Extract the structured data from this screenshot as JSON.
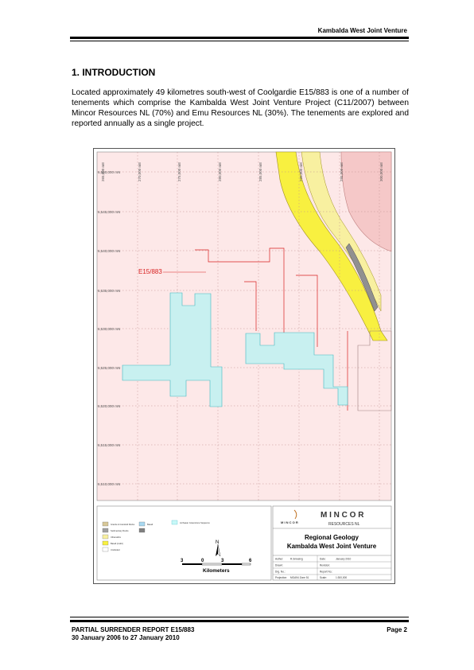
{
  "header": {
    "title": "Kambalda West Joint Venture"
  },
  "section": {
    "heading": "1.  INTRODUCTION",
    "paragraph": "Located approximately 49 kilometres south-west of Coolgardie E15/883 is one of a number of tenements which comprise the Kambalda West Joint Venture Project (C11/2007) between Mincor Resources NL (70%) and Emu Resources NL (30%). The tenements are explored and reported annually as a single project."
  },
  "map": {
    "eastings": [
      "265,000 mE",
      "270,000 mE",
      "275,000 mE",
      "280,000 mE",
      "285,000 mE",
      "290,000 mE",
      "295,000 mE",
      "300,000 mE"
    ],
    "northings": [
      "6,550,000 mN",
      "6,545,000 mN",
      "6,540,000 mN",
      "6,535,000 mN",
      "6,530,000 mN",
      "6,525,000 mN",
      "6,520,000 mN",
      "6,515,000 mN",
      "6,510,000 mN"
    ],
    "tenement_label": "E15/883",
    "legend": [
      {
        "label": "Granite & Granitoid Rocks",
        "color": "#d8c898"
      },
      {
        "label": "Basalt",
        "color": "#a8d8f0"
      },
      {
        "label": "Archaean Greenstone Sequence",
        "color": "#c8f8f8"
      },
      {
        "label": "Sedimentary Rocks",
        "color": "#a0a0a0"
      },
      {
        "label": "Ultramafics",
        "color": "#f8f0a0"
      },
      {
        "label": "Basalt (mafic)",
        "color": "#f8f040"
      },
      {
        "label": "Undivided",
        "color": "#ffffff"
      }
    ],
    "scale": {
      "left": "3",
      "mid": "0",
      "r1": "3",
      "r2": "6",
      "unit": "Kilometers"
    },
    "north": "N",
    "colors": {
      "background": "#fde8e8",
      "yellow": "#f8f040",
      "pale_yellow": "#f8f0a0",
      "pink": "#f5c8c8",
      "cyan": "#c8f0f0",
      "red": "#d82020",
      "grey": "#909090"
    }
  },
  "titleblock": {
    "company": "M I N C O R",
    "company_sub": "RESOURCES  NL",
    "logo_text": "M I N C O R",
    "title_line1": "Regional Geology",
    "title_line2": "Kambalda West Joint Venture",
    "rows": [
      {
        "k1": "Author:",
        "v1": "R.Smeeing",
        "k2": "Date:",
        "v2": "January 2010"
      },
      {
        "k1": "Drawn:",
        "v1": "",
        "k2": "Revision:",
        "v2": ""
      },
      {
        "k1": "Drg. No.:",
        "v1": "",
        "k2": "Report No.:",
        "v2": ""
      },
      {
        "k1": "Projection:",
        "v1": "MGA94 Zone 51",
        "k2": "Scale:",
        "v2": "1:300,000"
      }
    ]
  },
  "footer": {
    "line1": "PARTIAL SURRENDER REPORT E15/883",
    "line2": "30 January 2006 to 27 January 2010",
    "page": "Page 2"
  }
}
